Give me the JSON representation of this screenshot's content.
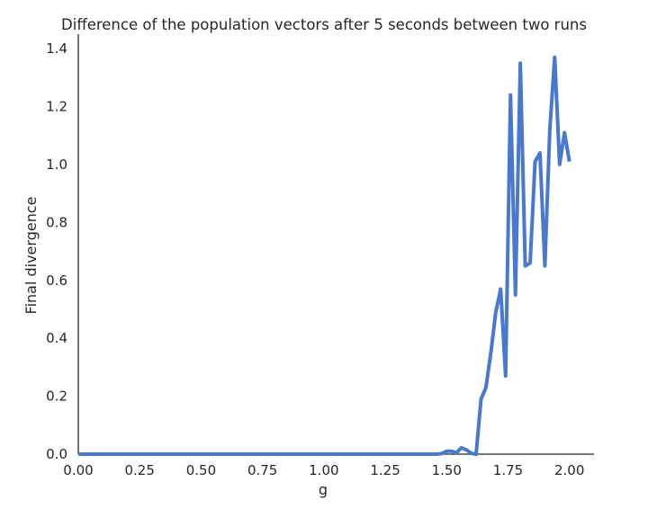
{
  "chart_data": {
    "type": "line",
    "title": "Difference of the population vectors after 5 seconds between two runs",
    "xlabel": "g",
    "ylabel": "Final divergence",
    "x": [
      0,
      1.4,
      1.46,
      1.48,
      1.5,
      1.52,
      1.54,
      1.56,
      1.58,
      1.6,
      1.62,
      1.64,
      1.66,
      1.68,
      1.7,
      1.72,
      1.74,
      1.76,
      1.78,
      1.8,
      1.82,
      1.84,
      1.86,
      1.88,
      1.9,
      1.92,
      1.94,
      1.96,
      1.98,
      2.0
    ],
    "series": [
      {
        "name": "divergence",
        "color": "#4878cf",
        "values": [
          0,
          0,
          0,
          0.002,
          0.01,
          0.01,
          0.005,
          0.022,
          0.015,
          0.003,
          0.0,
          0.19,
          0.23,
          0.35,
          0.49,
          0.57,
          0.27,
          1.24,
          0.55,
          1.35,
          0.65,
          0.66,
          1.01,
          1.04,
          0.65,
          1.12,
          1.37,
          1.0,
          1.11,
          1.01
        ]
      }
    ],
    "xlim": [
      0,
      2.1
    ],
    "ylim": [
      0,
      1.45
    ],
    "xticks": [
      {
        "value": 0,
        "label": "0.00"
      },
      {
        "value": 0.25,
        "label": "0.25"
      },
      {
        "value": 0.5,
        "label": "0.50"
      },
      {
        "value": 0.75,
        "label": "0.75"
      },
      {
        "value": 1,
        "label": "1.00"
      },
      {
        "value": 1.25,
        "label": "1.25"
      },
      {
        "value": 1.5,
        "label": "1.50"
      },
      {
        "value": 1.75,
        "label": "1.75"
      },
      {
        "value": 2,
        "label": "2.00"
      }
    ],
    "yticks": [
      {
        "value": 0,
        "label": "0.0"
      },
      {
        "value": 0.2,
        "label": "0.2"
      },
      {
        "value": 0.4,
        "label": "0.4"
      },
      {
        "value": 0.6,
        "label": "0.6"
      },
      {
        "value": 0.8,
        "label": "0.8"
      },
      {
        "value": 1,
        "label": "1.0"
      },
      {
        "value": 1.2,
        "label": "1.2"
      },
      {
        "value": 1.4,
        "label": "1.4"
      }
    ]
  }
}
